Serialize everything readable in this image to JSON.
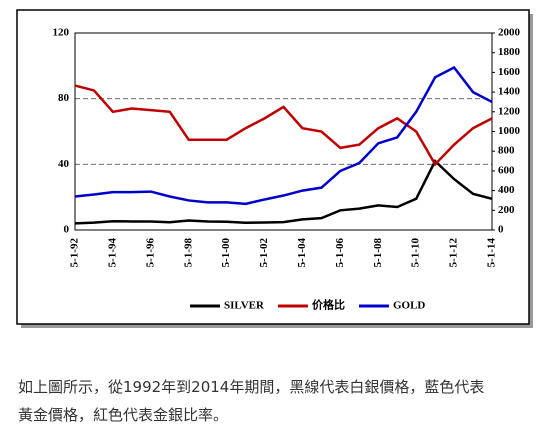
{
  "chart_data": {
    "type": "line",
    "categories": [
      "5-1-92",
      null,
      "5-1-94",
      null,
      "5-1-96",
      null,
      "5-1-98",
      null,
      "5-1-00",
      null,
      "5-1-02",
      null,
      "5-1-04",
      null,
      "5-1-06",
      null,
      "5-1-08",
      null,
      "5-1-10",
      null,
      "5-1-12",
      null,
      "5-1-14"
    ],
    "ylim": [
      0,
      120
    ],
    "yticks": [
      0,
      40,
      80,
      120
    ],
    "y2lim": [
      0,
      2000
    ],
    "y2ticks": [
      0,
      200,
      400,
      600,
      800,
      1000,
      1200,
      1400,
      1600,
      1800,
      2000
    ],
    "grid": true,
    "legend": "bottom",
    "series": [
      {
        "name": "SILVER",
        "color": "#000000",
        "values": [
          4,
          4.5,
          5.3,
          5.2,
          5.2,
          4.7,
          5.8,
          5.2,
          5.0,
          4.4,
          4.6,
          4.8,
          6.5,
          7.2,
          12,
          13,
          15,
          14,
          19,
          42,
          31,
          22,
          19
        ]
      },
      {
        "name": "价格比",
        "color": "#c00000",
        "values": [
          88,
          85,
          72,
          74,
          73,
          72,
          55,
          55,
          55,
          62,
          68,
          75,
          62,
          60,
          50,
          52,
          62,
          68,
          60,
          40,
          52,
          62,
          68
        ]
      },
      {
        "name": "GOLD",
        "color": "#0000cc",
        "axis": "y2",
        "values": [
          340,
          360,
          385,
          385,
          390,
          340,
          300,
          280,
          280,
          265,
          310,
          350,
          400,
          430,
          600,
          680,
          880,
          940,
          1200,
          1550,
          1650,
          1400,
          1300
        ]
      }
    ]
  },
  "caption": [
    "如上圖所示，從1992年到2014年期間，黑線代表白銀價格，藍色代表",
    "黃金價格，紅色代表金銀比率。"
  ]
}
